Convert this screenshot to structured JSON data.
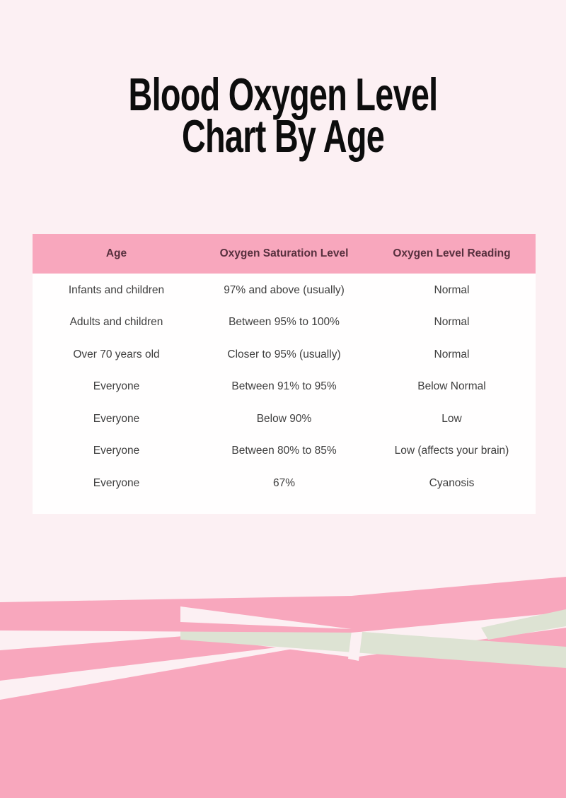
{
  "title": {
    "line1": "Blood Oxygen Level",
    "line2": "Chart By Age"
  },
  "table": {
    "headers": [
      "Age",
      "Oxygen Saturation Level",
      "Oxygen Level Reading"
    ],
    "rows": [
      [
        "Infants and children",
        "97% and above (usually)",
        "Normal"
      ],
      [
        "Adults and children",
        "Between 95% to 100%",
        "Normal"
      ],
      [
        "Over 70 years old",
        "Closer to 95% (usually)",
        "Normal"
      ],
      [
        "Everyone",
        "Between 91% to 95%",
        "Below Normal"
      ],
      [
        "Everyone",
        "Below 90%",
        "Low"
      ],
      [
        "Everyone",
        "Between 80% to 85%",
        "Low (affects your brain)"
      ],
      [
        "Everyone",
        "67%",
        "Cyanosis"
      ]
    ]
  },
  "chart_data": {
    "type": "table",
    "title": "Blood Oxygen Level Chart By Age",
    "columns": [
      "Age",
      "Oxygen Saturation Level",
      "Oxygen Level Reading"
    ],
    "rows": [
      [
        "Infants and children",
        "97% and above (usually)",
        "Normal"
      ],
      [
        "Adults and children",
        "Between 95% to 100%",
        "Normal"
      ],
      [
        "Over 70 years old",
        "Closer to 95% (usually)",
        "Normal"
      ],
      [
        "Everyone",
        "Between 91% to 95%",
        "Below Normal"
      ],
      [
        "Everyone",
        "Below 90%",
        "Low"
      ],
      [
        "Everyone",
        "Between 80% to 85%",
        "Low (affects your brain)"
      ],
      [
        "Everyone",
        "67%",
        "Cyanosis"
      ]
    ]
  },
  "colors": {
    "page-bg": "#fcf0f3",
    "pink": "#f8a7bd",
    "sage": "#dde3d3",
    "card-bg": "#fffefe",
    "header-text": "#57303e",
    "body-text": "#3e3e3e",
    "title-text": "#0d0d0d"
  }
}
